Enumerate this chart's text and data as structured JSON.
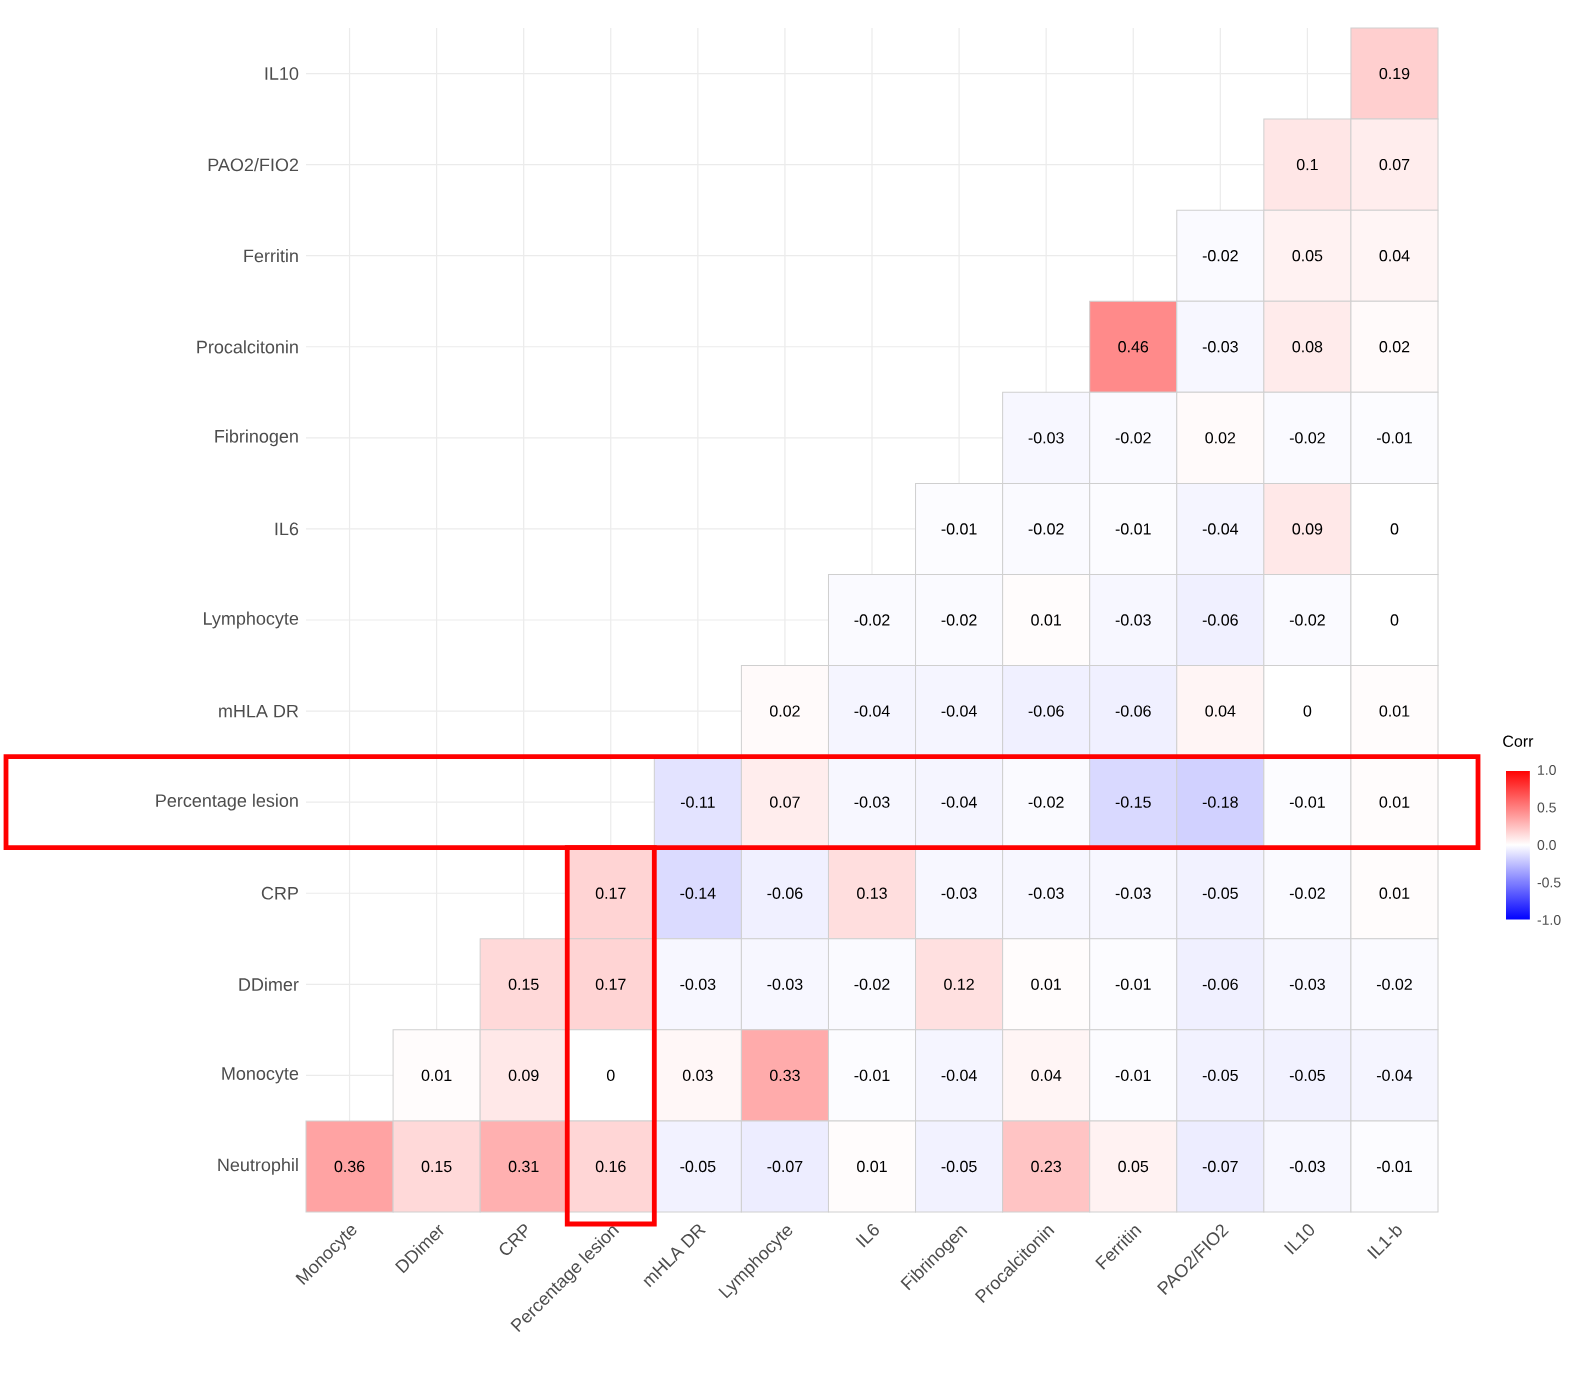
{
  "chart_data": {
    "type": "heatmap",
    "clabel": "Corr",
    "categories": [
      "Monocyte",
      "DDimer",
      "CRP",
      "Percentage lesion",
      "mHLA DR",
      "Lymphocyte",
      "IL6",
      "Fibrinogen",
      "Procalcitonin",
      "Ferritin",
      "PAO2/FIO2",
      "IL10",
      "IL1-b"
    ],
    "y_categories": [
      "IL10",
      "PAO2/FIO2",
      "Ferritin",
      "Procalcitonin",
      "Fibrinogen",
      "IL6",
      "Lymphocyte",
      "mHLA DR",
      "Percentage lesion",
      "CRP",
      "DDimer",
      "Monocyte",
      "Neutrophil"
    ],
    "cells": [
      [
        null,
        null,
        null,
        null,
        null,
        null,
        null,
        null,
        null,
        null,
        null,
        null,
        0.19
      ],
      [
        null,
        null,
        null,
        null,
        null,
        null,
        null,
        null,
        null,
        null,
        null,
        0.1,
        0.07
      ],
      [
        null,
        null,
        null,
        null,
        null,
        null,
        null,
        null,
        null,
        null,
        -0.02,
        0.05,
        0.04
      ],
      [
        null,
        null,
        null,
        null,
        null,
        null,
        null,
        null,
        null,
        0.46,
        -0.03,
        0.08,
        0.02
      ],
      [
        null,
        null,
        null,
        null,
        null,
        null,
        null,
        null,
        -0.03,
        -0.02,
        0.02,
        -0.02,
        -0.01
      ],
      [
        null,
        null,
        null,
        null,
        null,
        null,
        null,
        -0.01,
        -0.02,
        -0.01,
        -0.04,
        0.09,
        0
      ],
      [
        null,
        null,
        null,
        null,
        null,
        null,
        -0.02,
        -0.02,
        0.01,
        -0.03,
        -0.06,
        -0.02,
        0
      ],
      [
        null,
        null,
        null,
        null,
        null,
        0.02,
        -0.04,
        -0.04,
        -0.06,
        -0.06,
        0.04,
        0,
        0.01
      ],
      [
        null,
        null,
        null,
        null,
        -0.11,
        0.07,
        -0.03,
        -0.04,
        -0.02,
        -0.15,
        -0.18,
        -0.01,
        0.01
      ],
      [
        null,
        null,
        null,
        0.17,
        -0.14,
        -0.06,
        0.13,
        -0.03,
        -0.03,
        -0.03,
        -0.05,
        -0.02,
        0.01
      ],
      [
        null,
        null,
        0.15,
        0.17,
        -0.03,
        -0.03,
        -0.02,
        0.12,
        0.01,
        -0.01,
        -0.06,
        -0.03,
        -0.02
      ],
      [
        null,
        0.01,
        0.09,
        0,
        0.03,
        0.33,
        -0.01,
        -0.04,
        0.04,
        -0.01,
        -0.05,
        -0.05,
        -0.04
      ],
      [
        0.36,
        0.15,
        0.31,
        0.16,
        -0.05,
        -0.07,
        0.01,
        -0.05,
        0.23,
        0.05,
        -0.07,
        -0.03,
        -0.01
      ]
    ],
    "clim": [
      -1,
      1
    ],
    "cticks": [
      {
        "value": -1,
        "label": "-1.0"
      },
      {
        "value": -0.5,
        "label": "-0.5"
      },
      {
        "value": 0,
        "label": "0.0"
      },
      {
        "value": 0.5,
        "label": "0.5"
      },
      {
        "value": 1,
        "label": "1.0"
      }
    ],
    "data_labels": true,
    "grid": true
  }
}
